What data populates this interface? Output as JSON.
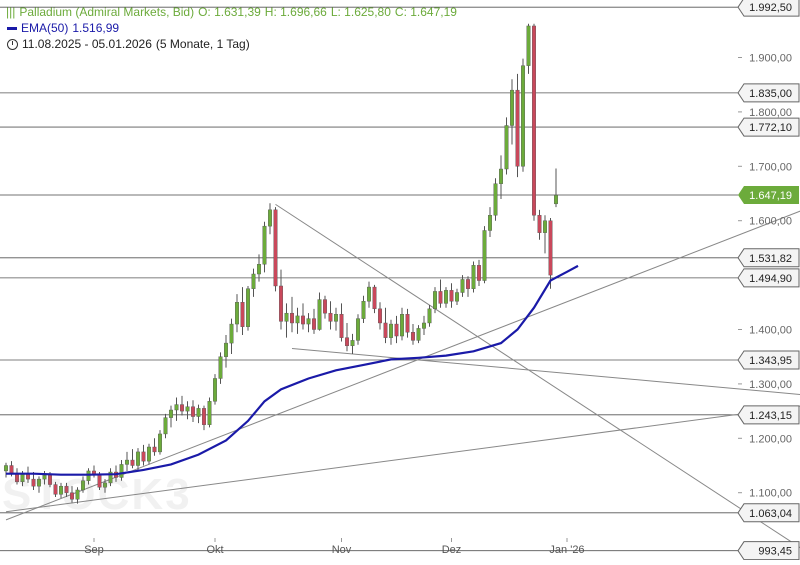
{
  "legend": {
    "title": "Palladium (Admiral Markets, Bid)",
    "open": "O: 1.631,39",
    "high": "H: 1.696,66",
    "low": "L: 1.625,80",
    "close": "C: 1.647,19",
    "ema_label": "EMA(50)",
    "ema_value": "1.516,99",
    "range": "11.08.2025 - 05.01.2026",
    "period": "(5 Monate, 1 Tag)"
  },
  "watermark": "STOCK3",
  "colors": {
    "up": "#6cab3b",
    "down": "#c9485b",
    "ema": "#1a1aa8",
    "level": "#555555",
    "trendline": "#888888",
    "current_price_tag": "#6cab3b"
  },
  "chart_data": {
    "type": "candlestick",
    "title": "Palladium (Admiral Markets, Bid)",
    "period": "11.08.2025 - 05.01.2026",
    "ylim": [
      990,
      1995
    ],
    "y_ticks": [
      {
        "value": 1900,
        "label": "1.900,00"
      },
      {
        "value": 1800,
        "label": "1.800,00"
      },
      {
        "value": 1700,
        "label": "1.700,00"
      },
      {
        "value": 1600,
        "label": "1.600,00"
      },
      {
        "value": 1400,
        "label": "1.400,00"
      },
      {
        "value": 1300,
        "label": "1.300,00"
      },
      {
        "value": 1200,
        "label": "1.200,00"
      },
      {
        "value": 1100,
        "label": "1.100,00"
      }
    ],
    "x_ticks": [
      {
        "index": 16,
        "label": "Sep"
      },
      {
        "index": 38,
        "label": "Okt"
      },
      {
        "index": 61,
        "label": "Nov"
      },
      {
        "index": 81,
        "label": "Dez"
      },
      {
        "index": 102,
        "label": "Jan '26"
      }
    ],
    "levels": [
      {
        "value": 1992.5,
        "label": "1.992,50"
      },
      {
        "value": 1835.0,
        "label": "1.835,00"
      },
      {
        "value": 1772.1,
        "label": "1.772,10"
      },
      {
        "value": 1531.82,
        "label": "1.531,82"
      },
      {
        "value": 1494.9,
        "label": "1.494,90"
      },
      {
        "value": 1343.95,
        "label": "1.343,95"
      },
      {
        "value": 1243.15,
        "label": "1.243,15"
      },
      {
        "value": 1063.04,
        "label": "1.063,04"
      },
      {
        "value": 993.45,
        "label": "993,45"
      }
    ],
    "current_price": {
      "value": 1647.19,
      "label": "1.647,19"
    },
    "trendlines": [
      {
        "from": [
          0,
          1065
        ],
        "to": [
          145,
          1260
        ]
      },
      {
        "from": [
          0,
          1050
        ],
        "to": [
          145,
          1620
        ]
      },
      {
        "from": [
          49,
          1630
        ],
        "to": [
          145,
          995
        ]
      },
      {
        "from": [
          52,
          1365
        ],
        "to": [
          145,
          1280
        ]
      }
    ],
    "ema_series": {
      "name": "EMA(50)",
      "points": [
        [
          0,
          1135
        ],
        [
          5,
          1135
        ],
        [
          10,
          1133
        ],
        [
          15,
          1133
        ],
        [
          20,
          1134
        ],
        [
          25,
          1142
        ],
        [
          30,
          1152
        ],
        [
          35,
          1170
        ],
        [
          40,
          1196
        ],
        [
          44,
          1232
        ],
        [
          47,
          1268
        ],
        [
          50,
          1290
        ],
        [
          55,
          1310
        ],
        [
          60,
          1325
        ],
        [
          65,
          1335
        ],
        [
          70,
          1345
        ],
        [
          75,
          1348
        ],
        [
          80,
          1352
        ],
        [
          85,
          1360
        ],
        [
          90,
          1375
        ],
        [
          93,
          1400
        ],
        [
          96,
          1440
        ],
        [
          99,
          1490
        ],
        [
          102,
          1506
        ],
        [
          104,
          1517
        ]
      ]
    },
    "candles": [
      {
        "o": 1140,
        "h": 1155,
        "l": 1128,
        "c": 1150
      },
      {
        "o": 1150,
        "h": 1158,
        "l": 1130,
        "c": 1135
      },
      {
        "o": 1135,
        "h": 1145,
        "l": 1115,
        "c": 1120
      },
      {
        "o": 1120,
        "h": 1140,
        "l": 1112,
        "c": 1135
      },
      {
        "o": 1135,
        "h": 1148,
        "l": 1118,
        "c": 1125
      },
      {
        "o": 1125,
        "h": 1138,
        "l": 1105,
        "c": 1112
      },
      {
        "o": 1112,
        "h": 1130,
        "l": 1100,
        "c": 1125
      },
      {
        "o": 1125,
        "h": 1140,
        "l": 1115,
        "c": 1132
      },
      {
        "o": 1132,
        "h": 1138,
        "l": 1110,
        "c": 1115
      },
      {
        "o": 1115,
        "h": 1120,
        "l": 1092,
        "c": 1097
      },
      {
        "o": 1097,
        "h": 1118,
        "l": 1090,
        "c": 1112
      },
      {
        "o": 1112,
        "h": 1118,
        "l": 1092,
        "c": 1100
      },
      {
        "o": 1100,
        "h": 1112,
        "l": 1082,
        "c": 1088
      },
      {
        "o": 1088,
        "h": 1110,
        "l": 1080,
        "c": 1105
      },
      {
        "o": 1105,
        "h": 1130,
        "l": 1100,
        "c": 1122
      },
      {
        "o": 1122,
        "h": 1145,
        "l": 1115,
        "c": 1140
      },
      {
        "o": 1140,
        "h": 1150,
        "l": 1128,
        "c": 1132
      },
      {
        "o": 1132,
        "h": 1138,
        "l": 1105,
        "c": 1110
      },
      {
        "o": 1110,
        "h": 1125,
        "l": 1100,
        "c": 1118
      },
      {
        "o": 1118,
        "h": 1145,
        "l": 1112,
        "c": 1138
      },
      {
        "o": 1138,
        "h": 1150,
        "l": 1120,
        "c": 1128
      },
      {
        "o": 1128,
        "h": 1160,
        "l": 1122,
        "c": 1152
      },
      {
        "o": 1152,
        "h": 1175,
        "l": 1140,
        "c": 1160
      },
      {
        "o": 1160,
        "h": 1180,
        "l": 1145,
        "c": 1150
      },
      {
        "o": 1150,
        "h": 1182,
        "l": 1140,
        "c": 1175
      },
      {
        "o": 1175,
        "h": 1188,
        "l": 1150,
        "c": 1158
      },
      {
        "o": 1158,
        "h": 1190,
        "l": 1152,
        "c": 1184
      },
      {
        "o": 1184,
        "h": 1200,
        "l": 1168,
        "c": 1175
      },
      {
        "o": 1175,
        "h": 1215,
        "l": 1170,
        "c": 1208
      },
      {
        "o": 1208,
        "h": 1245,
        "l": 1200,
        "c": 1238
      },
      {
        "o": 1238,
        "h": 1260,
        "l": 1220,
        "c": 1252
      },
      {
        "o": 1252,
        "h": 1275,
        "l": 1232,
        "c": 1262
      },
      {
        "o": 1262,
        "h": 1278,
        "l": 1242,
        "c": 1250
      },
      {
        "o": 1250,
        "h": 1268,
        "l": 1235,
        "c": 1258
      },
      {
        "o": 1258,
        "h": 1270,
        "l": 1230,
        "c": 1240
      },
      {
        "o": 1240,
        "h": 1262,
        "l": 1228,
        "c": 1255
      },
      {
        "o": 1255,
        "h": 1260,
        "l": 1215,
        "c": 1225
      },
      {
        "o": 1225,
        "h": 1275,
        "l": 1220,
        "c": 1268
      },
      {
        "o": 1268,
        "h": 1318,
        "l": 1262,
        "c": 1310
      },
      {
        "o": 1310,
        "h": 1358,
        "l": 1300,
        "c": 1350
      },
      {
        "o": 1350,
        "h": 1390,
        "l": 1330,
        "c": 1375
      },
      {
        "o": 1375,
        "h": 1420,
        "l": 1355,
        "c": 1410
      },
      {
        "o": 1410,
        "h": 1465,
        "l": 1395,
        "c": 1450
      },
      {
        "o": 1450,
        "h": 1478,
        "l": 1390,
        "c": 1405
      },
      {
        "o": 1405,
        "h": 1480,
        "l": 1398,
        "c": 1475
      },
      {
        "o": 1475,
        "h": 1512,
        "l": 1460,
        "c": 1502
      },
      {
        "o": 1502,
        "h": 1538,
        "l": 1488,
        "c": 1520
      },
      {
        "o": 1520,
        "h": 1598,
        "l": 1505,
        "c": 1590
      },
      {
        "o": 1590,
        "h": 1632,
        "l": 1575,
        "c": 1620
      },
      {
        "o": 1620,
        "h": 1625,
        "l": 1470,
        "c": 1480
      },
      {
        "o": 1480,
        "h": 1510,
        "l": 1400,
        "c": 1415
      },
      {
        "o": 1415,
        "h": 1448,
        "l": 1385,
        "c": 1430
      },
      {
        "o": 1430,
        "h": 1460,
        "l": 1395,
        "c": 1412
      },
      {
        "o": 1412,
        "h": 1440,
        "l": 1392,
        "c": 1425
      },
      {
        "o": 1425,
        "h": 1448,
        "l": 1400,
        "c": 1410
      },
      {
        "o": 1410,
        "h": 1430,
        "l": 1395,
        "c": 1420
      },
      {
        "o": 1420,
        "h": 1438,
        "l": 1392,
        "c": 1400
      },
      {
        "o": 1400,
        "h": 1468,
        "l": 1398,
        "c": 1455
      },
      {
        "o": 1455,
        "h": 1462,
        "l": 1420,
        "c": 1430
      },
      {
        "o": 1430,
        "h": 1452,
        "l": 1400,
        "c": 1415
      },
      {
        "o": 1415,
        "h": 1440,
        "l": 1398,
        "c": 1428
      },
      {
        "o": 1428,
        "h": 1448,
        "l": 1378,
        "c": 1385
      },
      {
        "o": 1385,
        "h": 1412,
        "l": 1360,
        "c": 1370
      },
      {
        "o": 1370,
        "h": 1392,
        "l": 1355,
        "c": 1380
      },
      {
        "o": 1380,
        "h": 1428,
        "l": 1372,
        "c": 1420
      },
      {
        "o": 1420,
        "h": 1462,
        "l": 1412,
        "c": 1452
      },
      {
        "o": 1452,
        "h": 1488,
        "l": 1440,
        "c": 1478
      },
      {
        "o": 1478,
        "h": 1482,
        "l": 1430,
        "c": 1438
      },
      {
        "o": 1438,
        "h": 1450,
        "l": 1400,
        "c": 1412
      },
      {
        "o": 1412,
        "h": 1440,
        "l": 1375,
        "c": 1385
      },
      {
        "o": 1385,
        "h": 1418,
        "l": 1372,
        "c": 1410
      },
      {
        "o": 1410,
        "h": 1425,
        "l": 1375,
        "c": 1388
      },
      {
        "o": 1388,
        "h": 1440,
        "l": 1380,
        "c": 1428
      },
      {
        "o": 1428,
        "h": 1438,
        "l": 1385,
        "c": 1395
      },
      {
        "o": 1395,
        "h": 1410,
        "l": 1372,
        "c": 1380
      },
      {
        "o": 1380,
        "h": 1408,
        "l": 1375,
        "c": 1402
      },
      {
        "o": 1402,
        "h": 1425,
        "l": 1390,
        "c": 1412
      },
      {
        "o": 1412,
        "h": 1445,
        "l": 1405,
        "c": 1438
      },
      {
        "o": 1438,
        "h": 1478,
        "l": 1430,
        "c": 1470
      },
      {
        "o": 1470,
        "h": 1492,
        "l": 1440,
        "c": 1448
      },
      {
        "o": 1448,
        "h": 1478,
        "l": 1440,
        "c": 1472
      },
      {
        "o": 1472,
        "h": 1485,
        "l": 1440,
        "c": 1452
      },
      {
        "o": 1452,
        "h": 1475,
        "l": 1445,
        "c": 1468
      },
      {
        "o": 1468,
        "h": 1500,
        "l": 1460,
        "c": 1492
      },
      {
        "o": 1492,
        "h": 1498,
        "l": 1460,
        "c": 1475
      },
      {
        "o": 1475,
        "h": 1525,
        "l": 1468,
        "c": 1518
      },
      {
        "o": 1518,
        "h": 1528,
        "l": 1480,
        "c": 1490
      },
      {
        "o": 1490,
        "h": 1590,
        "l": 1485,
        "c": 1582
      },
      {
        "o": 1582,
        "h": 1625,
        "l": 1570,
        "c": 1610
      },
      {
        "o": 1610,
        "h": 1678,
        "l": 1600,
        "c": 1668
      },
      {
        "o": 1668,
        "h": 1720,
        "l": 1640,
        "c": 1695
      },
      {
        "o": 1695,
        "h": 1790,
        "l": 1685,
        "c": 1775
      },
      {
        "o": 1775,
        "h": 1860,
        "l": 1740,
        "c": 1840
      },
      {
        "o": 1840,
        "h": 1870,
        "l": 1680,
        "c": 1700
      },
      {
        "o": 1700,
        "h": 1898,
        "l": 1690,
        "c": 1885
      },
      {
        "o": 1885,
        "h": 1962,
        "l": 1870,
        "c": 1958
      },
      {
        "o": 1958,
        "h": 1962,
        "l": 1600,
        "c": 1610
      },
      {
        "o": 1610,
        "h": 1620,
        "l": 1565,
        "c": 1578
      },
      {
        "o": 1578,
        "h": 1610,
        "l": 1540,
        "c": 1600
      },
      {
        "o": 1600,
        "h": 1605,
        "l": 1475,
        "c": 1500
      },
      {
        "o": 1631,
        "h": 1696,
        "l": 1625,
        "c": 1647
      }
    ]
  }
}
